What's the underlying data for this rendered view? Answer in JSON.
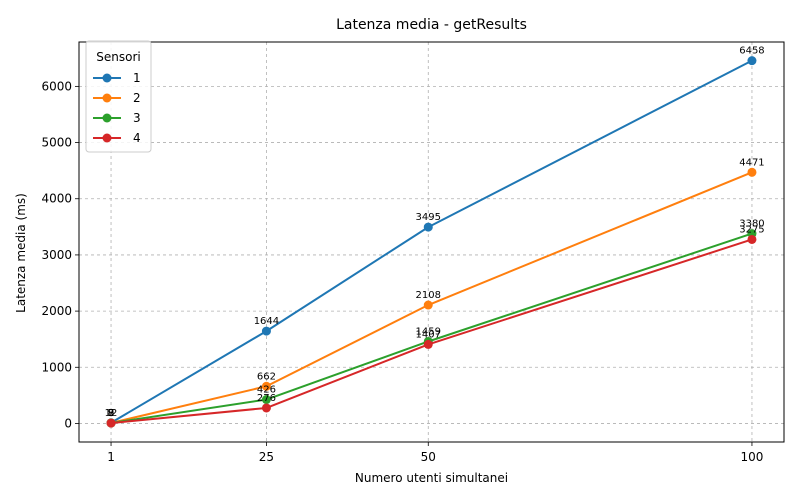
{
  "chart_data": {
    "type": "line",
    "title": "Latenza media - getResults",
    "xlabel": "Numero utenti simultanei",
    "ylabel": "Latenza media (ms)",
    "x": [
      1,
      25,
      50,
      100
    ],
    "xticks": [
      "1",
      "25",
      "50",
      "100"
    ],
    "ylim": [
      -330,
      6790
    ],
    "yticks": [
      0,
      1000,
      2000,
      3000,
      4000,
      5000,
      6000
    ],
    "grid": true,
    "legend": {
      "title": "Sensori",
      "position": "top-left"
    },
    "series": [
      {
        "name": "1",
        "color": "#1f77b4",
        "values": [
          12,
          1644,
          3495,
          6458
        ],
        "labels": [
          "12",
          "1644",
          "3495",
          "6458"
        ]
      },
      {
        "name": "2",
        "color": "#ff7f0e",
        "values": [
          9,
          662,
          2108,
          4471
        ],
        "labels": [
          "9",
          "662",
          "2108",
          "4471"
        ]
      },
      {
        "name": "3",
        "color": "#2ca02c",
        "values": [
          8,
          426,
          1459,
          3380
        ],
        "labels": [
          "8",
          "426",
          "1459",
          "3380"
        ]
      },
      {
        "name": "4",
        "color": "#d62728",
        "values": [
          7,
          276,
          1407,
          3275
        ],
        "labels": [
          "7",
          "276",
          "1407",
          "3275"
        ]
      }
    ]
  }
}
